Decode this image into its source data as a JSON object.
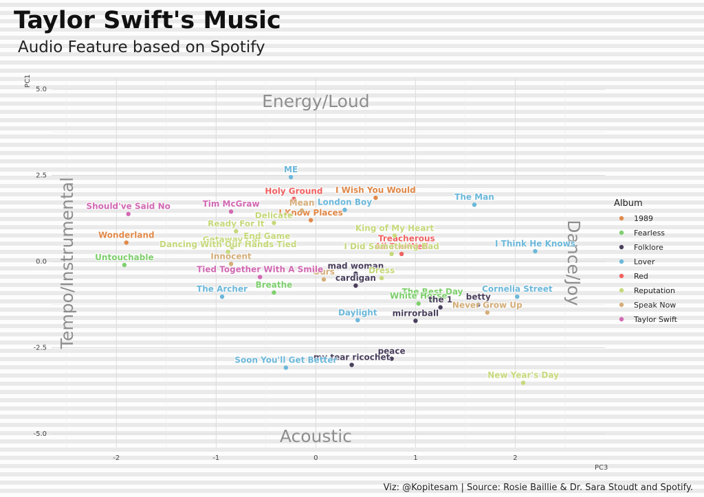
{
  "title": "Taylor Swift's Music",
  "subtitle": "Audio Feature based on Spotify",
  "caption": "Viz: @Kopitesam | Source: Rosie Baillie & Dr. Sara Stoudt and Spotify.",
  "chart_data": {
    "type": "scatter",
    "xlabel": "PC3",
    "ylabel": "PC1",
    "xlim": [
      -2.65,
      2.9
    ],
    "ylim": [
      -5.4,
      5.3
    ],
    "x_ticks": [
      -2,
      -1,
      0,
      1,
      2
    ],
    "y_ticks": [
      5.0,
      2.5,
      0.0,
      -2.5,
      -5.0
    ],
    "x_tick_labels": [
      "-2",
      "-1",
      "0",
      "1",
      "2"
    ],
    "y_tick_labels": [
      "5.0",
      "2.5",
      "0.0",
      "-2.5",
      "-5.0"
    ],
    "grid": true,
    "legend": {
      "title": "Album",
      "position": "right"
    },
    "quadrant_labels": {
      "top": "Energy/Loud",
      "bottom": "Acoustic",
      "left": "Tempo/Instrumental",
      "right": "Dance/Joy"
    },
    "series": [
      {
        "name": "1989",
        "color": "#E0894A",
        "points": [
          {
            "label": "I Wish You Would",
            "x": 0.6,
            "y": 1.85
          },
          {
            "label": "I Know Places",
            "x": -0.05,
            "y": 1.2
          },
          {
            "label": "Wonderland",
            "x": -1.9,
            "y": 0.55
          }
        ]
      },
      {
        "name": "Fearless",
        "color": "#7FCF6E",
        "points": [
          {
            "label": "Untouchable",
            "x": -1.92,
            "y": -0.1
          },
          {
            "label": "Breathe",
            "x": -0.42,
            "y": -0.9
          },
          {
            "label": "The Best Day",
            "x": 1.17,
            "y": -1.1
          },
          {
            "label": "White Horse",
            "x": 1.03,
            "y": -1.22
          }
        ]
      },
      {
        "name": "Folklore",
        "color": "#4A3F5C",
        "points": [
          {
            "label": "mad woman",
            "x": 0.4,
            "y": -0.35
          },
          {
            "label": "cardigan",
            "x": 0.4,
            "y": -0.7
          },
          {
            "label": "betty",
            "x": 1.63,
            "y": -1.25
          },
          {
            "label": "the 1",
            "x": 1.25,
            "y": -1.33
          },
          {
            "label": "mirrorball",
            "x": 1.0,
            "y": -1.72
          },
          {
            "label": "peace",
            "x": 0.76,
            "y": -2.82
          },
          {
            "label": "my tear ricochet",
            "x": 0.36,
            "y": -3.0
          }
        ]
      },
      {
        "name": "Lover",
        "color": "#6CB8DA",
        "points": [
          {
            "label": "ME",
            "x": -0.25,
            "y": 2.45
          },
          {
            "label": "London Boy",
            "x": 0.29,
            "y": 1.5
          },
          {
            "label": "The Man",
            "x": 1.59,
            "y": 1.65
          },
          {
            "label": "I Think He Knows",
            "x": 2.2,
            "y": 0.3
          },
          {
            "label": "Cornelia Street",
            "x": 2.02,
            "y": -1.02
          },
          {
            "label": "The Archer",
            "x": -0.94,
            "y": -1.02
          },
          {
            "label": "Daylight",
            "x": 0.42,
            "y": -1.7
          },
          {
            "label": "Soon You'll Get Better",
            "x": -0.3,
            "y": -3.08
          }
        ]
      },
      {
        "name": "Red",
        "color": "#F06262",
        "points": [
          {
            "label": "Holy Ground",
            "x": -0.22,
            "y": 1.82
          },
          {
            "label": "Treacherous",
            "x": 0.91,
            "y": 0.45
          },
          {
            "label": "All Too Well",
            "x": 0.86,
            "y": 0.22
          }
        ]
      },
      {
        "name": "Reputation",
        "color": "#C6D97C",
        "points": [
          {
            "label": "Ready For It",
            "x": -0.8,
            "y": 0.88
          },
          {
            "label": "Getaway Car",
            "x": -0.84,
            "y": 0.42
          },
          {
            "label": "End Game",
            "x": -0.49,
            "y": 0.52
          },
          {
            "label": "Dancing With Our Hands Tied",
            "x": -0.88,
            "y": 0.28
          },
          {
            "label": "King of My Heart",
            "x": 0.79,
            "y": 0.75
          },
          {
            "label": "I Did Something Bad",
            "x": 0.76,
            "y": 0.22
          },
          {
            "label": "Dress",
            "x": 0.66,
            "y": -0.48
          },
          {
            "label": "New Year's Day",
            "x": 2.08,
            "y": -3.52
          },
          {
            "label": "Delicate",
            "x": -0.42,
            "y": 1.12
          }
        ]
      },
      {
        "name": "Speak Now",
        "color": "#D5AE79",
        "points": [
          {
            "label": "Mean",
            "x": -0.14,
            "y": 1.48
          },
          {
            "label": "Innocent",
            "x": -0.85,
            "y": -0.07
          },
          {
            "label": "Ours",
            "x": 0.08,
            "y": -0.52
          },
          {
            "label": "Never Grow Up",
            "x": 1.72,
            "y": -1.48
          }
        ]
      },
      {
        "name": "Taylor Swift",
        "color": "#D269B3",
        "points": [
          {
            "label": "Should've Said No",
            "x": -1.88,
            "y": 1.38
          },
          {
            "label": "Tim McGraw",
            "x": -0.85,
            "y": 1.45
          },
          {
            "label": "Tied Together With A Smile",
            "x": -0.56,
            "y": -0.45
          }
        ]
      }
    ]
  }
}
